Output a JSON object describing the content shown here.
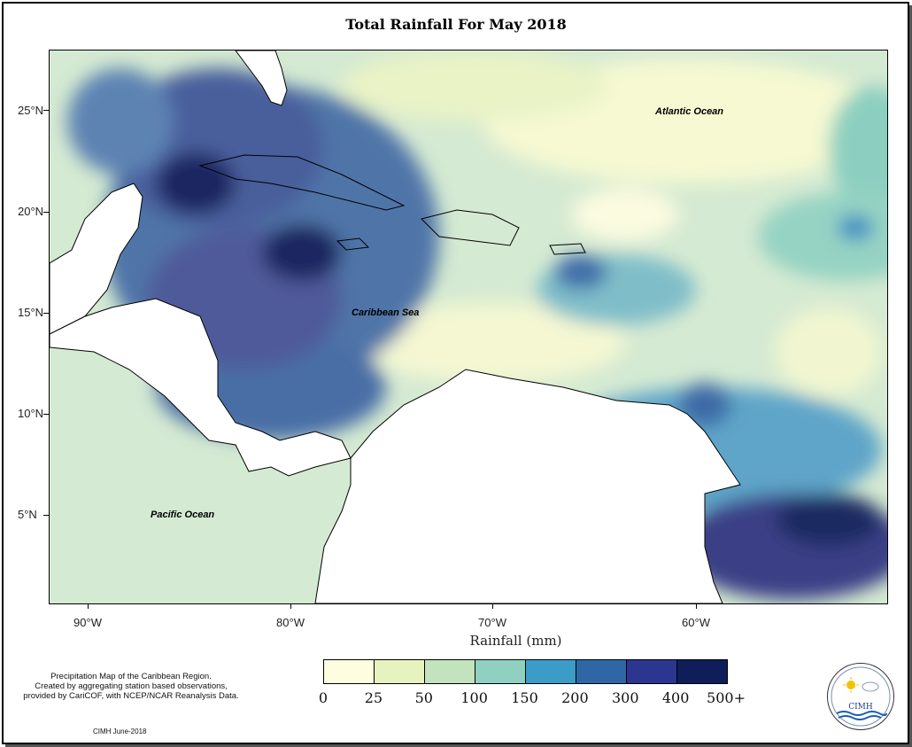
{
  "title": "Total Rainfall For May 2018",
  "axes": {
    "y_ticks": [
      {
        "label": "25°N",
        "lat": 25
      },
      {
        "label": "20°N",
        "lat": 20
      },
      {
        "label": "15°N",
        "lat": 15
      },
      {
        "label": "10°N",
        "lat": 10
      },
      {
        "label": "5°N",
        "lat": 5
      }
    ],
    "x_ticks": [
      {
        "label": "90°W",
        "lon": -90
      },
      {
        "label": "80°W",
        "lon": -80
      },
      {
        "label": "70°W",
        "lon": -70
      },
      {
        "label": "60°W",
        "lon": -60
      }
    ],
    "xlabel": "Rainfall (mm)"
  },
  "labels": {
    "atlantic": "Atlantic Ocean",
    "caribbean": "Caribbean Sea",
    "pacific": "Pacific Ocean"
  },
  "legend": {
    "colors": [
      "#fdfde0",
      "#e6f3be",
      "#c2e3bd",
      "#8fd0c1",
      "#3c9cc8",
      "#2f67a6",
      "#2b3691",
      "#0f1e58"
    ],
    "labels": [
      "0",
      "25",
      "50",
      "100",
      "150",
      "200",
      "300",
      "400",
      "500+"
    ]
  },
  "note": {
    "line1": "Precipitation Map of the Caribbean Region.",
    "line2": "Created by aggregating station based observations,",
    "line3": "provided by CariCOF, with NCEP/NCAR Reanalysis Data."
  },
  "credit": "CIMH June-2018",
  "logo": {
    "text": "CIMH"
  }
}
